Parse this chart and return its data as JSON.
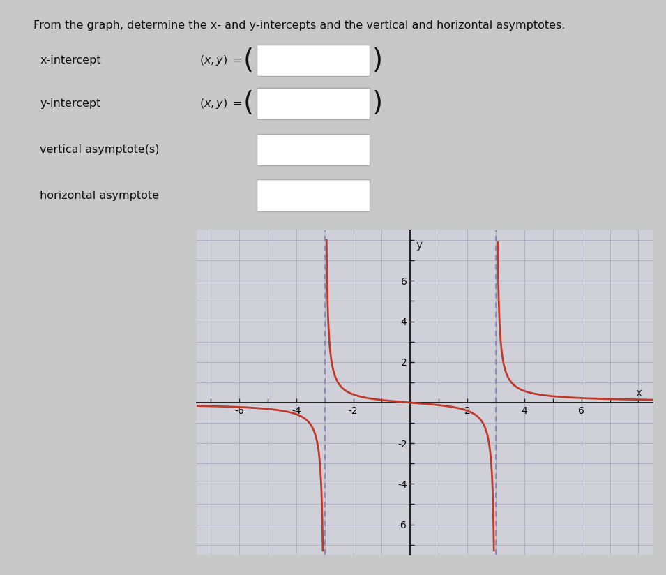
{
  "title": "From the graph, determine the x- and y-intercepts and the vertical and horizontal asymptotes.",
  "x_label": "x",
  "y_label": "y",
  "xlim": [
    -7.5,
    8.5
  ],
  "ylim": [
    -7.5,
    8.5
  ],
  "xticks": [
    -6,
    -4,
    -2,
    2,
    4,
    6
  ],
  "yticks": [
    -6,
    -4,
    -2,
    2,
    4,
    6
  ],
  "vertical_asymptotes": [
    -3,
    3
  ],
  "horizontal_asymptote": 0,
  "curve_color": "#c0392b",
  "asymptote_color": "#8888bb",
  "page_bg": "#c8c8c8",
  "form_bg": "#d8d8d8",
  "graph_bg": "#d0d0d8",
  "box_fill": "#e0e0e0",
  "box_edge": "#aaaaaa",
  "text_color": "#111111",
  "grid_color": "#a0a0bb",
  "axes_color": "#222222",
  "title_fontsize": 11.5,
  "label_fontsize": 11.5,
  "axis_tick_fontsize": 9.5
}
